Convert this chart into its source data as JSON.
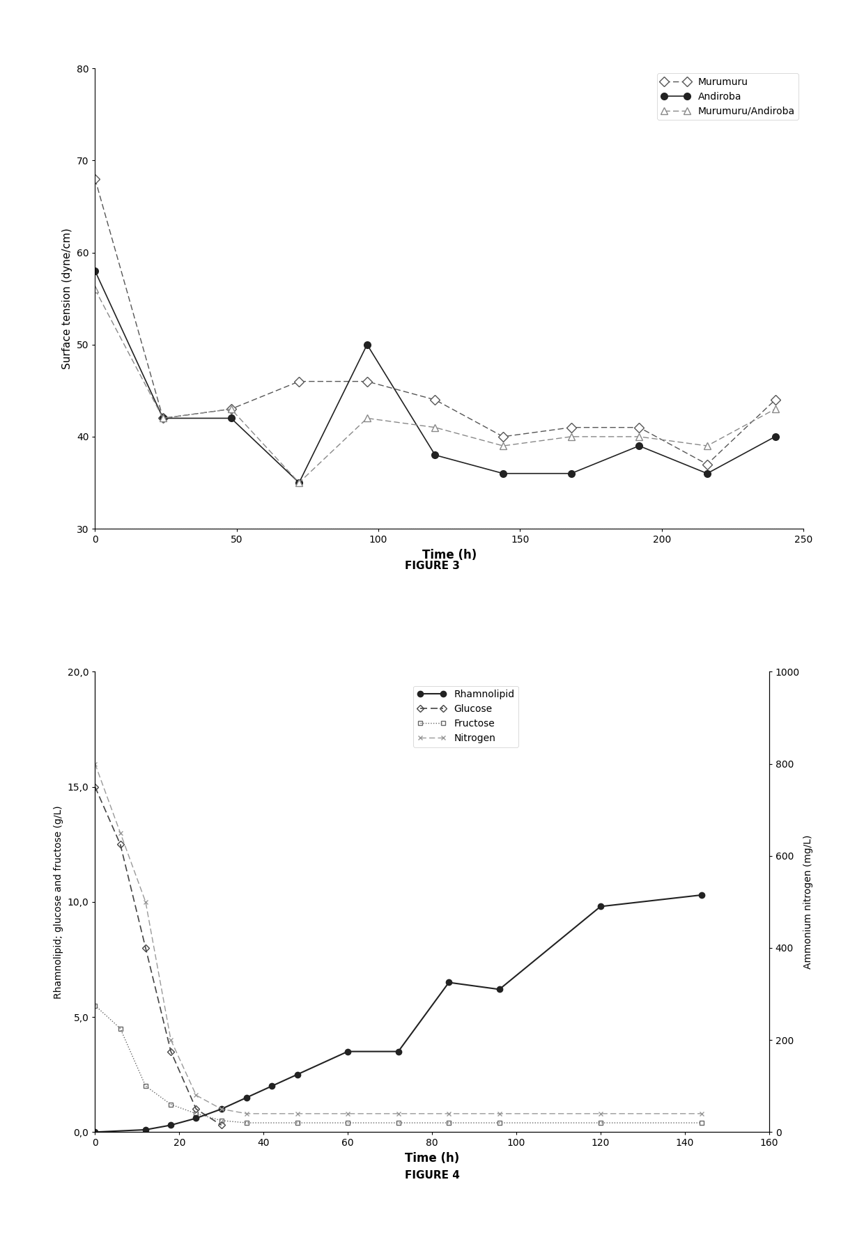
{
  "fig3": {
    "title": "FIGURE 3",
    "xlabel": "Time (h)",
    "ylabel": "Surface tension (dyne/cm)",
    "ylim": [
      30,
      80
    ],
    "xlim": [
      0,
      250
    ],
    "yticks": [
      30,
      40,
      50,
      60,
      70,
      80
    ],
    "xticks": [
      0,
      50,
      100,
      150,
      200,
      250
    ],
    "hline_y": 30,
    "murumuru": {
      "x": [
        0,
        24,
        48,
        72,
        96,
        120,
        144,
        168,
        192,
        216,
        240
      ],
      "y": [
        68,
        42,
        43,
        46,
        46,
        44,
        40,
        41,
        41,
        37,
        44
      ],
      "label": "Murumuru",
      "marker": "D",
      "linestyle": "--",
      "color": "#555555"
    },
    "andiroba": {
      "x": [
        0,
        24,
        48,
        72,
        96,
        120,
        144,
        168,
        192,
        216,
        240
      ],
      "y": [
        58,
        42,
        42,
        35,
        50,
        38,
        36,
        36,
        39,
        36,
        40
      ],
      "label": "Andiroba",
      "marker": "o",
      "linestyle": "-",
      "color": "#222222"
    },
    "murumuru_andiroba": {
      "x": [
        0,
        24,
        48,
        72,
        96,
        120,
        144,
        168,
        192,
        216,
        240
      ],
      "y": [
        56,
        42,
        43,
        35,
        42,
        41,
        39,
        40,
        40,
        39,
        43
      ],
      "label": "Murumuru/Andiroba",
      "marker": "^",
      "linestyle": "--",
      "color": "#888888"
    }
  },
  "fig4": {
    "title": "FIGURE 4",
    "xlabel": "Time (h)",
    "ylabel_left": "Rhamnolipid; glucose and fructose (g/L)",
    "ylabel_right": "Ammonium nitrogen (mg/L)",
    "ylim_left": [
      0,
      20
    ],
    "ylim_right": [
      0,
      1000
    ],
    "xlim": [
      0,
      160
    ],
    "yticks_left": [
      0.0,
      5.0,
      10.0,
      15.0,
      20.0
    ],
    "yticks_right": [
      0,
      200,
      400,
      600,
      800,
      1000
    ],
    "xticks": [
      0,
      20,
      40,
      60,
      80,
      100,
      120,
      140,
      160
    ],
    "rhamnolipid": {
      "x": [
        0,
        12,
        18,
        24,
        30,
        36,
        42,
        48,
        60,
        72,
        84,
        96,
        120,
        144
      ],
      "y": [
        0.0,
        0.1,
        0.3,
        0.6,
        1.0,
        1.5,
        2.0,
        2.5,
        3.5,
        3.5,
        6.5,
        6.2,
        9.8,
        10.3
      ],
      "label": "Rhamnolipid",
      "marker": "o",
      "linestyle": "-",
      "color": "#222222",
      "markersize": 6,
      "markerfacecolor": "#222222"
    },
    "glucose": {
      "x": [
        0,
        6,
        12,
        18,
        24,
        30
      ],
      "y": [
        15.0,
        12.5,
        8.0,
        3.5,
        1.0,
        0.3
      ],
      "label": "Glucose",
      "marker": "D",
      "linestyle": "--",
      "color": "#444444",
      "markersize": 5,
      "markerfacecolor": "none"
    },
    "fructose": {
      "x": [
        0,
        6,
        12,
        18,
        24,
        30,
        36,
        48,
        60,
        72,
        84,
        96,
        120,
        144
      ],
      "y": [
        5.5,
        4.5,
        2.0,
        1.2,
        0.8,
        0.5,
        0.4,
        0.4,
        0.4,
        0.4,
        0.4,
        0.4,
        0.4,
        0.4
      ],
      "label": "Fructose",
      "marker": "s",
      "linestyle": ":",
      "color": "#666666",
      "markersize": 5,
      "markerfacecolor": "none"
    },
    "nitrogen": {
      "x": [
        0,
        6,
        12,
        18,
        24,
        30,
        36,
        48,
        60,
        72,
        84,
        96,
        120,
        144
      ],
      "y": [
        800,
        650,
        500,
        200,
        80,
        50,
        40,
        40,
        40,
        40,
        40,
        40,
        40,
        40
      ],
      "label": "Nitrogen",
      "marker": "x",
      "linestyle": "--",
      "color": "#999999",
      "markersize": 5,
      "markerfacecolor": "none"
    }
  }
}
